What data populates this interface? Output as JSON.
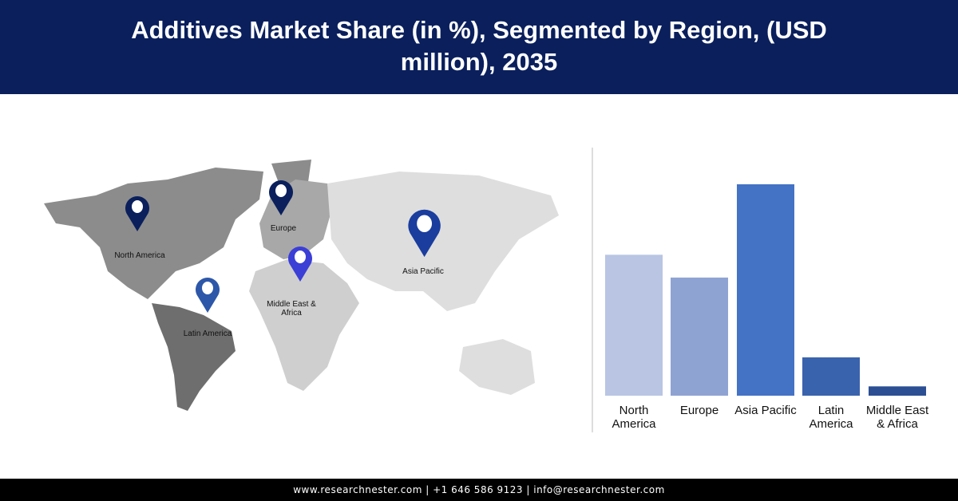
{
  "header": {
    "title": "Additives Market Share (in %), Segmented by Region, (USD million), 2035"
  },
  "map": {
    "pins": [
      {
        "label": "North America",
        "color": "#0a1f5c"
      },
      {
        "label": "Europe",
        "color": "#0a1f5c"
      },
      {
        "label": "Asia Pacific",
        "color": "#1a3d9e"
      },
      {
        "label": "Middle East & Africa",
        "color": "#3b3fd6"
      },
      {
        "label": "Latin America",
        "color": "#2d57a8"
      }
    ]
  },
  "chart_data": {
    "type": "bar",
    "title": "",
    "xlabel": "",
    "ylabel": "",
    "categories": [
      "North America",
      "Europe",
      "Asia Pacific",
      "Latin America",
      "Middle East & Africa"
    ],
    "values": [
      27.2,
      22.8,
      40.8,
      7.4,
      1.8
    ],
    "colors": [
      "#b9c5e3",
      "#8fa3d3",
      "#4472c4",
      "#3a63ad",
      "#2c4f94"
    ],
    "ylim": [
      0,
      42
    ],
    "grid": false,
    "y_axis_labels_shown": false
  },
  "footer": {
    "text": "www.researchnester.com  | +1 646 586 9123 | info@researchnester.com"
  }
}
